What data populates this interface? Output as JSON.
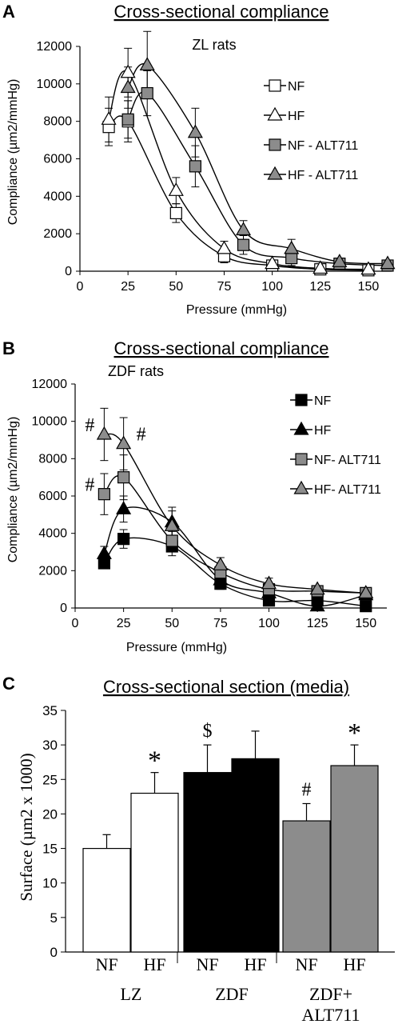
{
  "panels": {
    "a_letter": "A",
    "b_letter": "B",
    "c_letter": "C"
  },
  "chart_data": [
    {
      "type": "line",
      "title": "Cross-sectional compliance",
      "annotation": "ZL rats",
      "xlabel": "Pressure (mmHg)",
      "ylabel": "Compliance (µm2/mmHg)",
      "xlim": [
        0,
        160
      ],
      "ylim": [
        0,
        12000
      ],
      "xticks": [
        0,
        25,
        50,
        75,
        100,
        125,
        150
      ],
      "yticks": [
        0,
        2000,
        4000,
        6000,
        8000,
        10000,
        12000
      ],
      "series": [
        {
          "name": "NF",
          "marker": "square",
          "fill": "#ffffff",
          "x": [
            15,
            25,
            50,
            75,
            100,
            125,
            150
          ],
          "y": [
            7700,
            8000,
            3100,
            800,
            300,
            100,
            50
          ],
          "err": [
            1000,
            1100,
            500,
            350,
            200,
            100,
            50
          ]
        },
        {
          "name": "HF",
          "marker": "triangle",
          "fill": "#ffffff",
          "x": [
            15,
            25,
            50,
            75,
            100,
            125,
            150
          ],
          "y": [
            8100,
            10600,
            4300,
            1200,
            400,
            150,
            100
          ],
          "err": [
            1200,
            1300,
            700,
            400,
            200,
            100,
            50
          ]
        },
        {
          "name": "NF - ALT711",
          "marker": "square",
          "fill": "#8c8c8c",
          "x": [
            25,
            35,
            60,
            85,
            110,
            135,
            160
          ],
          "y": [
            8100,
            9500,
            5600,
            1400,
            700,
            400,
            300
          ],
          "err": [
            1000,
            1200,
            1100,
            500,
            400,
            200,
            100
          ]
        },
        {
          "name": "HF - ALT711",
          "marker": "triangle",
          "fill": "#8c8c8c",
          "x": [
            25,
            35,
            60,
            85,
            110,
            135,
            160
          ],
          "y": [
            9800,
            11000,
            7400,
            2200,
            1200,
            500,
            400
          ],
          "err": [
            1100,
            1800,
            1300,
            500,
            500,
            200,
            100
          ]
        }
      ]
    },
    {
      "type": "line",
      "title": "Cross-sectional compliance",
      "annotation": "ZDF rats",
      "xlabel": "Pressure (mmHg)",
      "ylabel": "Compliance (µm2/mmHg)",
      "xlim": [
        0,
        160
      ],
      "ylim": [
        0,
        12000
      ],
      "xticks": [
        0,
        25,
        50,
        75,
        100,
        125,
        150
      ],
      "yticks": [
        0,
        2000,
        4000,
        6000,
        8000,
        10000,
        12000
      ],
      "marks": [
        "#",
        "#",
        "#"
      ],
      "series": [
        {
          "name": "NF",
          "marker": "square",
          "fill": "#000000",
          "x": [
            15,
            25,
            50,
            75,
            100,
            125,
            150
          ],
          "y": [
            2400,
            3700,
            3300,
            1300,
            400,
            400,
            100
          ],
          "err": [
            300,
            500,
            500,
            300,
            200,
            200,
            100
          ]
        },
        {
          "name": "HF",
          "marker": "triangle",
          "fill": "#000000",
          "x": [
            15,
            25,
            50,
            75,
            100,
            125,
            150
          ],
          "y": [
            2900,
            5300,
            4600,
            1500,
            800,
            100,
            700
          ],
          "err": [
            400,
            700,
            800,
            400,
            300,
            100,
            200
          ]
        },
        {
          "name": "NF- ALT711",
          "marker": "square",
          "fill": "#8c8c8c",
          "x": [
            15,
            25,
            50,
            75,
            100,
            125,
            150
          ],
          "y": [
            6100,
            7000,
            3600,
            1900,
            1000,
            900,
            800
          ],
          "err": [
            1100,
            1200,
            500,
            400,
            300,
            200,
            200
          ]
        },
        {
          "name": "HF- ALT711",
          "marker": "triangle",
          "fill": "#8c8c8c",
          "x": [
            15,
            25,
            50,
            75,
            100,
            125,
            150
          ],
          "y": [
            9300,
            8800,
            4400,
            2300,
            1300,
            1000,
            800
          ],
          "err": [
            1400,
            1400,
            800,
            400,
            300,
            200,
            200
          ]
        }
      ]
    },
    {
      "type": "bar",
      "title": "Cross-sectional section (media)",
      "ylabel": "Surface (µm2 x 1000)",
      "ylim": [
        0,
        35
      ],
      "yticks": [
        0,
        5,
        10,
        15,
        20,
        25,
        30,
        35
      ],
      "groups": [
        "LZ",
        "ZDF",
        "ZDF+ ALT711"
      ],
      "categories": [
        "NF",
        "HF",
        "NF",
        "HF",
        "NF",
        "HF"
      ],
      "values": [
        15,
        23,
        26,
        28,
        19,
        27
      ],
      "errors": [
        2,
        3,
        4,
        4,
        2.5,
        3
      ],
      "colors": [
        "#ffffff",
        "#ffffff",
        "#000000",
        "#000000",
        "#8c8c8c",
        "#8c8c8c"
      ],
      "marks": [
        "",
        "*",
        "$",
        "",
        "#",
        "*"
      ]
    }
  ]
}
